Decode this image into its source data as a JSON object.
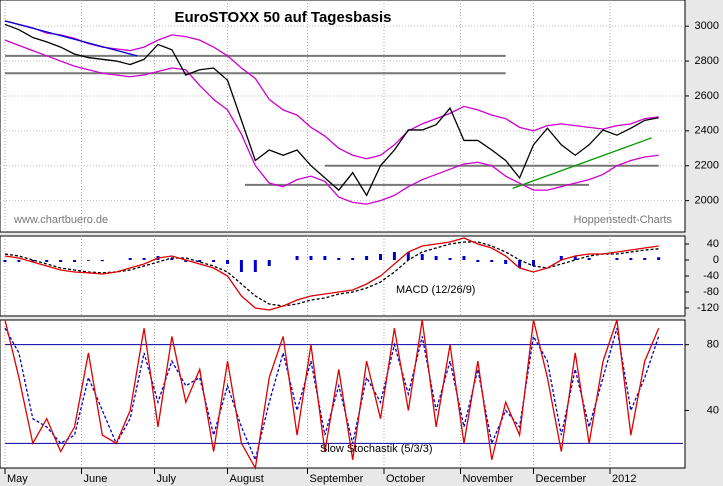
{
  "chart_data": [
    {
      "type": "line",
      "title": "EuroSTOXX 50 auf Tagesbasis",
      "annotations": [
        "www.chartbuero.de",
        "Hoppenstedt-Charts"
      ],
      "x": [
        0,
        4,
        8,
        12,
        16,
        20,
        24,
        28,
        32,
        36,
        40,
        44,
        48,
        52,
        56,
        60,
        64,
        68,
        72,
        76,
        80,
        84,
        88,
        92,
        96,
        100,
        104,
        108,
        112,
        116,
        120,
        124,
        128,
        132,
        136,
        140,
        144,
        148,
        152,
        156,
        160,
        164,
        168,
        172,
        176,
        180,
        184,
        188
      ],
      "xlim": [
        0,
        195
      ],
      "ylim": [
        1820,
        3150
      ],
      "yticks": [
        2000,
        2200,
        2400,
        2600,
        2800,
        3000
      ],
      "grid": true,
      "series": [
        {
          "color": "#cc00cc",
          "values": [
            3030,
            3010,
            2990,
            2960,
            2950,
            2930,
            2900,
            2880,
            2870,
            2860,
            2880,
            2920,
            2950,
            2940,
            2920,
            2880,
            2830,
            2760,
            2700,
            2580,
            2520,
            2490,
            2420,
            2370,
            2300,
            2260,
            2240,
            2260,
            2320,
            2400,
            2440,
            2470,
            2500,
            2540,
            2520,
            2490,
            2470,
            2420,
            2400,
            2430,
            2440,
            2430,
            2420,
            2410,
            2430,
            2440,
            2470,
            2480
          ]
        },
        {
          "color": "#cc00cc",
          "values": [
            2920,
            2890,
            2860,
            2830,
            2800,
            2770,
            2750,
            2730,
            2720,
            2710,
            2720,
            2740,
            2760,
            2750,
            2660,
            2580,
            2520,
            2380,
            2200,
            2100,
            2080,
            2120,
            2140,
            2110,
            2020,
            1990,
            1980,
            2000,
            2030,
            2080,
            2120,
            2150,
            2180,
            2210,
            2220,
            2200,
            2140,
            2100,
            2060,
            2060,
            2080,
            2100,
            2120,
            2150,
            2200,
            2230,
            2250,
            2260
          ]
        },
        {
          "color": "#000000",
          "values": [
            3010,
            2980,
            2935,
            2910,
            2880,
            2840,
            2820,
            2810,
            2800,
            2780,
            2810,
            2895,
            2865,
            2720,
            2750,
            2760,
            2690,
            2460,
            2230,
            2290,
            2260,
            2290,
            2200,
            2130,
            2060,
            2160,
            2030,
            2200,
            2290,
            2405,
            2405,
            2435,
            2530,
            2345,
            2345,
            2290,
            2230,
            2130,
            2320,
            2415,
            2320,
            2260,
            2320,
            2405,
            2375,
            2415,
            2460,
            2475
          ]
        }
      ],
      "levels": [
        {
          "value": 2830,
          "x": [
            0,
            144
          ]
        },
        {
          "value": 2730,
          "x": [
            0,
            144
          ]
        },
        {
          "value": 2200,
          "x": [
            92,
            188
          ]
        },
        {
          "value": 2090,
          "x": [
            69,
            168
          ]
        }
      ],
      "trendlines": [
        {
          "color": "#0000cc",
          "x": [
            0,
            38
          ],
          "y": [
            3030,
            2830
          ]
        },
        {
          "color": "#009900",
          "x": [
            146,
            186
          ],
          "y": [
            2070,
            2360
          ]
        }
      ]
    },
    {
      "type": "line",
      "title": "MACD (12/26/9)",
      "x": [
        0,
        4,
        8,
        12,
        16,
        20,
        24,
        28,
        32,
        36,
        40,
        44,
        48,
        52,
        56,
        60,
        64,
        68,
        72,
        76,
        80,
        84,
        88,
        92,
        96,
        100,
        104,
        108,
        112,
        116,
        120,
        124,
        128,
        132,
        136,
        140,
        144,
        148,
        152,
        156,
        160,
        164,
        168,
        172,
        176,
        180,
        184,
        188
      ],
      "xlim": [
        0,
        195
      ],
      "ylim": [
        -140,
        60
      ],
      "yticks": [
        40,
        0,
        -40,
        -80,
        -120
      ],
      "series": [
        {
          "color": "#0000cc",
          "style": "bar",
          "values": [
            -5,
            -5,
            -5,
            -5,
            -5,
            -5,
            -2,
            -3,
            0,
            5,
            5,
            10,
            5,
            -5,
            -5,
            -5,
            -10,
            -30,
            -30,
            -15,
            0,
            10,
            10,
            10,
            5,
            5,
            10,
            15,
            20,
            20,
            15,
            10,
            5,
            10,
            -5,
            -5,
            -10,
            -20,
            -15,
            0,
            10,
            10,
            5,
            0,
            5,
            5,
            5,
            7
          ]
        },
        {
          "color": "#000000",
          "dash": true,
          "values": [
            15,
            10,
            0,
            -10,
            -20,
            -25,
            -30,
            -32,
            -30,
            -25,
            -15,
            -5,
            5,
            5,
            -5,
            -15,
            -30,
            -60,
            -90,
            -110,
            -115,
            -110,
            -100,
            -95,
            -85,
            -80,
            -70,
            -55,
            -30,
            0,
            20,
            30,
            40,
            45,
            45,
            35,
            20,
            0,
            -15,
            -20,
            -10,
            0,
            10,
            15,
            15,
            20,
            25,
            28
          ]
        },
        {
          "color": "#dd0000",
          "values": [
            10,
            5,
            -5,
            -15,
            -25,
            -30,
            -32,
            -35,
            -30,
            -20,
            -10,
            5,
            10,
            0,
            -10,
            -20,
            -40,
            -90,
            -120,
            -125,
            -115,
            -100,
            -90,
            -85,
            -80,
            -75,
            -60,
            -40,
            -10,
            20,
            35,
            40,
            45,
            55,
            40,
            30,
            10,
            -20,
            -30,
            -20,
            0,
            10,
            15,
            15,
            20,
            25,
            30,
            35
          ]
        }
      ]
    },
    {
      "type": "line",
      "title": "Slow Stochastik (5/3/3)",
      "x": [
        0,
        4,
        8,
        12,
        16,
        20,
        24,
        28,
        32,
        36,
        40,
        44,
        48,
        52,
        56,
        60,
        64,
        68,
        72,
        76,
        80,
        84,
        88,
        92,
        96,
        100,
        104,
        108,
        112,
        116,
        120,
        124,
        128,
        132,
        136,
        140,
        144,
        148,
        152,
        156,
        160,
        164,
        168,
        172,
        176,
        180,
        184,
        188
      ],
      "xlim": [
        0,
        195
      ],
      "ylim": [
        5,
        95
      ],
      "yticks": [
        40,
        80
      ],
      "levels": [
        {
          "value": 80,
          "x": [
            0,
            195
          ]
        },
        {
          "value": 20,
          "x": [
            0,
            195
          ]
        }
      ],
      "xticks": [
        {
          "value": 0,
          "label": "May"
        },
        {
          "value": 22,
          "label": "June"
        },
        {
          "value": 43,
          "label": "July"
        },
        {
          "value": 64,
          "label": "August"
        },
        {
          "value": 87,
          "label": "September"
        },
        {
          "value": 109,
          "label": "October"
        },
        {
          "value": 131,
          "label": "November"
        },
        {
          "value": 152,
          "label": "December"
        },
        {
          "value": 174,
          "label": "2012"
        }
      ],
      "series": [
        {
          "color": "#0000cc",
          "dash": true,
          "values": [
            90,
            75,
            35,
            30,
            20,
            25,
            60,
            40,
            20,
            35,
            75,
            45,
            70,
            55,
            60,
            25,
            55,
            30,
            10,
            45,
            75,
            40,
            70,
            25,
            55,
            20,
            60,
            45,
            80,
            50,
            85,
            40,
            70,
            30,
            65,
            20,
            40,
            30,
            85,
            70,
            25,
            65,
            30,
            60,
            90,
            40,
            60,
            85
          ]
        },
        {
          "color": "#dd0000",
          "values": [
            95,
            60,
            20,
            35,
            15,
            30,
            75,
            25,
            20,
            40,
            90,
            30,
            85,
            45,
            65,
            15,
            70,
            20,
            5,
            60,
            85,
            25,
            80,
            15,
            65,
            10,
            70,
            35,
            90,
            40,
            95,
            30,
            80,
            20,
            70,
            10,
            45,
            25,
            95,
            60,
            15,
            75,
            20,
            70,
            95,
            25,
            70,
            90
          ]
        }
      ]
    }
  ]
}
